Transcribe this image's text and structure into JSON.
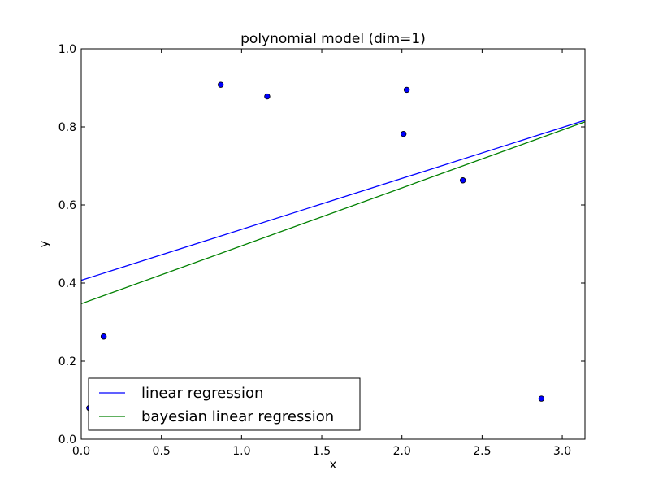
{
  "chart_data": {
    "type": "scatter",
    "title": "polynomial model (dim=1)",
    "xlabel": "x",
    "ylabel": "y",
    "xlim": [
      0.0,
      3.14159
    ],
    "ylim": [
      0.0,
      1.0
    ],
    "xticks": [
      "0.0",
      "0.5",
      "1.0",
      "1.5",
      "2.0",
      "2.5",
      "3.0"
    ],
    "yticks": [
      "0.0",
      "0.2",
      "0.4",
      "0.6",
      "0.8",
      "1.0"
    ],
    "grid": false,
    "legend": {
      "placement": "lower-left"
    },
    "scatter_points": {
      "color": "#0000ff",
      "x": [
        0.05,
        0.14,
        0.87,
        1.16,
        2.01,
        2.03,
        2.38,
        2.87
      ],
      "y": [
        0.08,
        0.263,
        0.908,
        0.878,
        0.782,
        0.895,
        0.663,
        0.104
      ]
    },
    "series": [
      {
        "name": "linear regression",
        "color": "#0000ff",
        "x": [
          0.0,
          3.14159
        ],
        "y": [
          0.407,
          0.817
        ]
      },
      {
        "name": "bayesian linear regression",
        "color": "#008000",
        "x": [
          0.0,
          3.14159
        ],
        "y": [
          0.347,
          0.813
        ]
      }
    ]
  }
}
